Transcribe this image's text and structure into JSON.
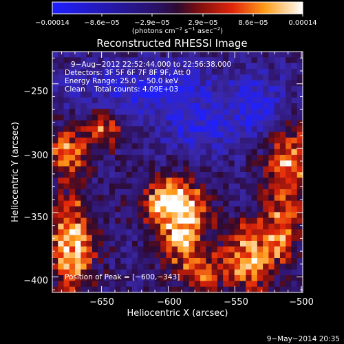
{
  "chart_data": {
    "type": "heatmap",
    "title": "Reconstructed RHESSI Image",
    "xlabel": "Heliocentric X (arcsec)",
    "ylabel": "Heliocentric Y (arcsec)",
    "xlim": [
      -687,
      -499
    ],
    "ylim": [
      -412,
      -225
    ],
    "x_ticks": [
      -650,
      -600,
      -550,
      -500
    ],
    "y_ticks": [
      -250,
      -300,
      -350,
      -400
    ],
    "x_tick_labels": [
      "−650",
      "−600",
      "−550",
      "−500"
    ],
    "y_tick_labels": [
      "−250",
      "−300",
      "−350",
      "−400"
    ],
    "colorbar": {
      "range": [
        -0.00014,
        0.00014
      ],
      "tick_labels": [
        "−0.00014",
        "−8.6e−05",
        "−2.9e−05",
        "2.9e−05",
        "8.6e−05",
        "0.00014"
      ],
      "units_text": "(photons cm",
      "units_sup1": "−2",
      "units_mid": " s",
      "units_sup2": "−1",
      "units_end": " asec",
      "units_sup3": "−2",
      "units_close": ")"
    },
    "annotations": {
      "time_range": "9−Aug−2012 22:52:44.000 to 22:56:38.000",
      "detectors": "Detectors: 3F 5F 6F 7F 8F 9F, Att 0",
      "energy_range": "Energy Range: 25.0 − 50.0 keV",
      "clean_counts": "Clean    Total counts: 4.09E+03",
      "peak_position": "Position of Peak = [−600,−343]"
    },
    "peak": [
      -600,
      -343
    ],
    "bright_regions": [
      {
        "x": -597,
        "y": -343,
        "sx": 16,
        "sy": 14,
        "amp": 1.0
      },
      {
        "x": -589,
        "y": -370,
        "sx": 10,
        "sy": 20,
        "amp": 0.75
      },
      {
        "x": -672,
        "y": -375,
        "sx": 12,
        "sy": 26,
        "amp": 0.9
      },
      {
        "x": -675,
        "y": -302,
        "sx": 10,
        "sy": 14,
        "amp": 0.75
      },
      {
        "x": -648,
        "y": -285,
        "sx": 9,
        "sy": 10,
        "amp": 0.7
      },
      {
        "x": -510,
        "y": -310,
        "sx": 14,
        "sy": 22,
        "amp": 0.7
      },
      {
        "x": -540,
        "y": -385,
        "sx": 16,
        "sy": 18,
        "amp": 0.8
      },
      {
        "x": -574,
        "y": -398,
        "sx": 8,
        "sy": 8,
        "amp": 0.6
      },
      {
        "x": -515,
        "y": -362,
        "sx": 10,
        "sy": 16,
        "amp": 0.55
      }
    ],
    "dark_regions": [
      {
        "x": -615,
        "y": -255,
        "sx": 40,
        "sy": 14,
        "amp": 0.55
      },
      {
        "x": -575,
        "y": -285,
        "sx": 22,
        "sy": 14,
        "amp": 0.5
      },
      {
        "x": -530,
        "y": -268,
        "sx": 16,
        "sy": 18,
        "amp": 0.5
      }
    ],
    "timestamp": "9−May−2014 20:35"
  }
}
